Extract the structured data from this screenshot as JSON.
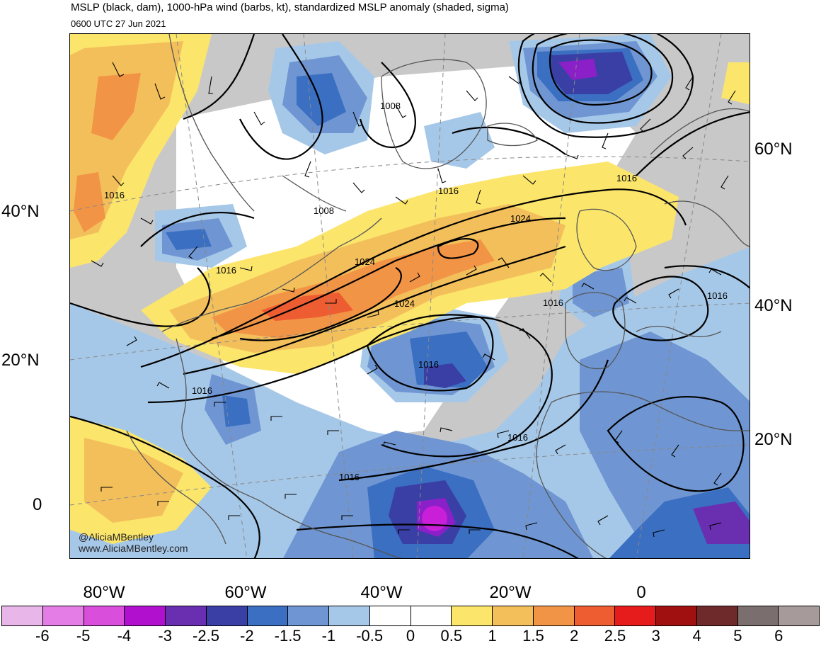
{
  "title": "MSLP (black, dam), 1000-hPa wind (barbs, kt), standardized MSLP anomaly (shaded, sigma)",
  "valid_time": "0600 UTC 27 Jun 2021",
  "credit": {
    "handle": "@AliciaMBentley",
    "website": "www.AliciaMBentley.com"
  },
  "lat_labels_left": [
    "40°N",
    "20°N",
    "0"
  ],
  "lat_labels_right": [
    "60°N",
    "40°N",
    "20°N"
  ],
  "lon_labels": [
    "80°W",
    "60°W",
    "40°W",
    "20°W",
    "0"
  ],
  "contour_labels": [
    {
      "text": "1008",
      "kind": "isobar"
    },
    {
      "text": "1016",
      "kind": "isobar"
    },
    {
      "text": "1016",
      "kind": "isobar"
    },
    {
      "text": "1008",
      "kind": "isobar"
    },
    {
      "text": "1016",
      "kind": "isobar"
    },
    {
      "text": "1024",
      "kind": "isobar"
    },
    {
      "text": "1016",
      "kind": "isobar"
    },
    {
      "text": "1024",
      "kind": "isobar"
    },
    {
      "text": "1024",
      "kind": "isobar"
    },
    {
      "text": "1016",
      "kind": "isobar"
    },
    {
      "text": "1016",
      "kind": "isobar"
    },
    {
      "text": "1016",
      "kind": "isobar"
    },
    {
      "text": "1016",
      "kind": "isobar"
    },
    {
      "text": "1016",
      "kind": "isobar"
    },
    {
      "text": "1016",
      "kind": "isobar"
    }
  ],
  "colorbar": {
    "labels": [
      "-6",
      "-5",
      "-4",
      "-3",
      "-2.5",
      "-2",
      "-1.5",
      "-1",
      "-0.5",
      "0",
      "0.5",
      "1",
      "1.5",
      "2",
      "2.5",
      "3",
      "4",
      "5",
      "6"
    ],
    "colors": [
      "#e8b6e8",
      "#e57de6",
      "#d94fdb",
      "#b110cf",
      "#6a2fb0",
      "#3a3fa6",
      "#3b6fc2",
      "#6f96d2",
      "#a6c8e8",
      "#ffffff",
      "#ffffff",
      "#fbe56b",
      "#f3bf5b",
      "#f29445",
      "#ee5d32",
      "#e61b1b",
      "#a01010",
      "#6e2a2a",
      "#7a6e6e",
      "#a69a9a"
    ]
  },
  "anomaly_colors": {
    "strong_negative": "#8b1fc8",
    "negative_2": "#3a3fa6",
    "negative_15": "#3b6fc2",
    "negative_1": "#6f96d2",
    "negative_05": "#a6c8e8",
    "neutral": "#ffffff",
    "positive_05": "#fbe56b",
    "positive_1": "#f3bf5b",
    "positive_15": "#f29445",
    "positive_2": "#ee5d32",
    "land": "#c8c8c8"
  }
}
